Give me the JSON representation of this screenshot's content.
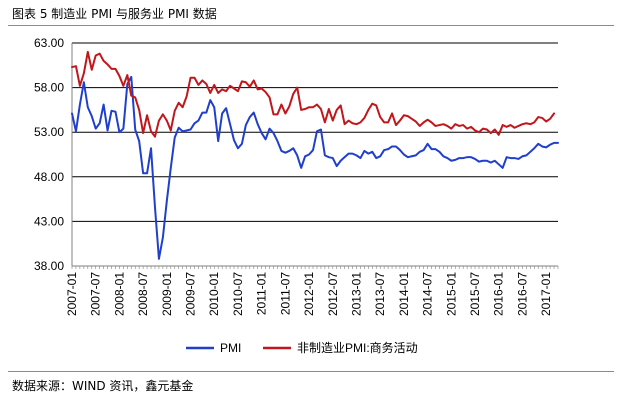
{
  "figure": {
    "title": "图表 5  制造业 PMI 与服务业 PMI 数据",
    "source": "数据来源：WIND 资讯，鑫元基金"
  },
  "chart_data": {
    "type": "line",
    "ylim": [
      38,
      63
    ],
    "y_ticks": [
      "63.00",
      "58.00",
      "53.00",
      "48.00",
      "43.00",
      "38.00"
    ],
    "x_ticks": [
      "2007-01",
      "2007-07",
      "2008-01",
      "2008-07",
      "2009-01",
      "2009-07",
      "2010-01",
      "2010-07",
      "2011-01",
      "2011-07",
      "2012-01",
      "2012-07",
      "2013-01",
      "2013-07",
      "2014-01",
      "2014-07",
      "2015-01",
      "2015-07",
      "2016-01",
      "2016-07",
      "2017-01"
    ],
    "x_range": [
      "2007-01",
      "2017-04"
    ],
    "grid": "horizontal",
    "legend_position": "bottom",
    "series": [
      {
        "name": "PMI",
        "color": "#1f3fcc",
        "x_start": "2007-01",
        "values": [
          55.1,
          53.1,
          56.1,
          58.6,
          55.8,
          54.8,
          53.4,
          54.0,
          56.1,
          53.2,
          55.4,
          55.3,
          53.0,
          53.4,
          58.4,
          59.2,
          53.3,
          52.0,
          48.4,
          48.4,
          51.2,
          44.6,
          38.8,
          41.2,
          45.3,
          49.0,
          52.4,
          53.5,
          53.1,
          53.2,
          53.3,
          54.0,
          54.3,
          55.2,
          55.2,
          56.6,
          55.8,
          52.0,
          55.1,
          55.7,
          53.9,
          52.1,
          51.2,
          51.7,
          53.8,
          54.7,
          55.2,
          53.9,
          52.9,
          52.2,
          53.4,
          52.9,
          52.0,
          50.9,
          50.7,
          50.9,
          51.2,
          50.4,
          49.0,
          50.3,
          50.5,
          51.0,
          53.1,
          53.3,
          50.4,
          50.2,
          50.1,
          49.2,
          49.8,
          50.2,
          50.6,
          50.6,
          50.4,
          50.1,
          50.9,
          50.6,
          50.8,
          50.1,
          50.3,
          51.0,
          51.1,
          51.4,
          51.4,
          51.0,
          50.5,
          50.2,
          50.3,
          50.4,
          50.8,
          51.0,
          51.7,
          51.1,
          51.1,
          50.8,
          50.3,
          50.1,
          49.8,
          49.9,
          50.1,
          50.1,
          50.2,
          50.2,
          50.0,
          49.7,
          49.8,
          49.8,
          49.6,
          49.8,
          49.4,
          49.0,
          50.2,
          50.1,
          50.1,
          50.0,
          50.3,
          50.4,
          50.8,
          51.2,
          51.7,
          51.4,
          51.3,
          51.6,
          51.8,
          51.8
        ]
      },
      {
        "name": "非制造业PMI:商务活动",
        "color": "#c0171c",
        "x_start": "2007-01",
        "values": [
          60.3,
          60.4,
          58.2,
          59.6,
          62.0,
          60.0,
          61.6,
          61.8,
          61.0,
          60.6,
          60.1,
          60.1,
          59.3,
          58.2,
          59.4,
          57.1,
          56.9,
          55.5,
          52.9,
          54.9,
          53.1,
          52.5,
          54.3,
          55.0,
          54.3,
          53.2,
          55.4,
          56.3,
          55.8,
          57.0,
          59.1,
          59.1,
          58.3,
          58.8,
          58.4,
          57.4,
          58.3,
          57.4,
          57.8,
          57.6,
          58.2,
          57.9,
          57.6,
          58.7,
          58.6,
          58.1,
          58.8,
          57.8,
          57.9,
          57.5,
          56.9,
          55.0,
          55.0,
          56.1,
          55.1,
          55.9,
          57.3,
          58.0,
          55.5,
          55.6,
          55.8,
          55.8,
          56.1,
          55.6,
          54.1,
          55.6,
          54.3,
          55.5,
          56.0,
          53.9,
          54.3,
          54.0,
          53.9,
          54.1,
          54.6,
          55.5,
          56.2,
          56.0,
          54.7,
          54.1,
          54.1,
          55.1,
          53.8,
          54.3,
          54.9,
          54.8,
          54.5,
          54.2,
          53.7,
          54.1,
          54.4,
          54.1,
          53.7,
          53.8,
          53.9,
          53.7,
          53.4,
          53.9,
          53.7,
          53.8,
          53.4,
          53.6,
          53.2,
          53.0,
          53.4,
          53.3,
          52.9,
          53.3,
          52.7,
          53.8,
          53.6,
          53.8,
          53.5,
          53.7,
          53.9,
          54.0,
          53.9,
          54.1,
          54.7,
          54.6,
          54.2,
          54.5,
          55.1
        ]
      }
    ]
  }
}
